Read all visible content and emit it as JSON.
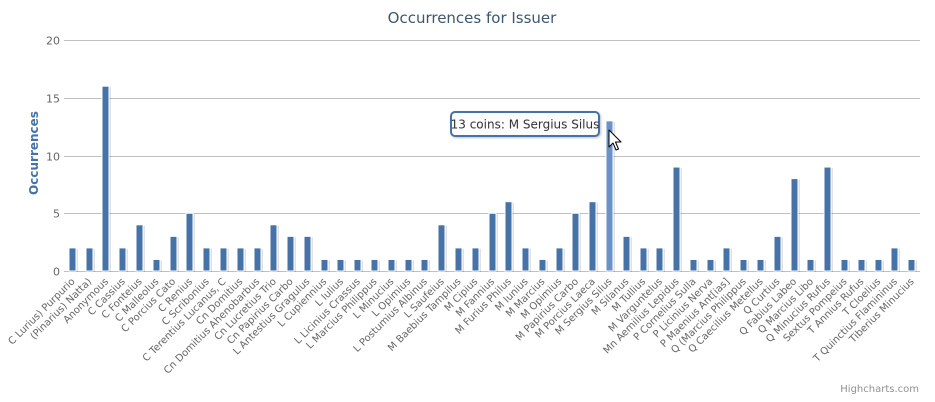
{
  "chart_data": {
    "type": "bar",
    "title": "Occurrences for Issuer",
    "xlabel": "",
    "ylabel": "Occurrences",
    "ylim": [
      0,
      20
    ],
    "yticks": [
      0,
      5,
      10,
      15,
      20
    ],
    "grid": true,
    "color": "#4572A7",
    "highlight_color": "#6A92C8",
    "categories": [
      "C Lurius) Purpurio",
      "(Pinarius) Natta)",
      "Anonymous",
      "C Cassius",
      "C Fonteius",
      "C Malleolus",
      "C Porcius Cato",
      "C Renius",
      "C Scribonius",
      "C Terentius Lucanus, C",
      "Cn Domitius",
      "Cn Domitius Ahenobarbus",
      "Cn Lucretius Trio",
      "Cn Papirius Carbo",
      "L Antestius Gragulus",
      "L Cupiennius",
      "L Iulius",
      "L Licinius Crassus",
      "L Marcius Philippus",
      "L Minucius",
      "L Opimius",
      "L Postumius Albinus",
      "L Saufeius",
      "M Baebius Tampilus",
      "M Cipius",
      "M Fannius",
      "M Furius Philus",
      "M Iunius",
      "M Marcius",
      "M Opimius",
      "M Papirius Carbo",
      "M Porcius Laeca",
      "M Sergius Silus",
      "M Silanus",
      "M Tullius",
      "M Varguntelus",
      "Mn Aemilius Lepidus",
      "P Cornelius Sulla",
      "P Licinius Nerva",
      "P Maenius Ant[ias]",
      "Q (Marcius Philippus",
      "Q Caecilius Metellus",
      "Q Curtius",
      "Q Fabius Labeo",
      "Q Marcius Libo",
      "Q Minucius Rufus",
      "Sextus Pompeius",
      "T Annius Rufus",
      "T Cloelius",
      "T Quinctius Flamininus",
      "Tiberius Minucius"
    ],
    "values": [
      2,
      2,
      16,
      2,
      4,
      1,
      3,
      5,
      2,
      2,
      2,
      2,
      4,
      3,
      3,
      1,
      1,
      1,
      1,
      1,
      1,
      1,
      4,
      2,
      2,
      5,
      6,
      2,
      1,
      2,
      5,
      6,
      13,
      3,
      2,
      2,
      9,
      1,
      1,
      2,
      1,
      1,
      3,
      8,
      1,
      9,
      1,
      1,
      1,
      2,
      1
    ],
    "highlighted_index": 32,
    "tooltip": "13 coins: M Sergius Silus",
    "credits": "Highcharts.com"
  }
}
